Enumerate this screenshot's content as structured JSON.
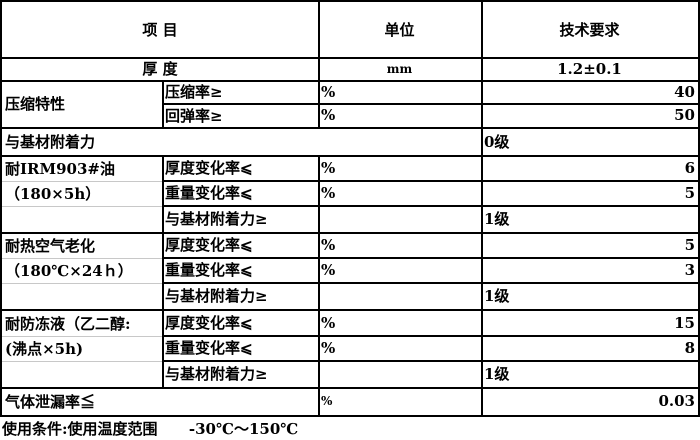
{
  "header": {
    "item": "项          目",
    "unit": "单位",
    "requirement": "技术要求"
  },
  "thickness": {
    "label": "厚            度",
    "unit": "mm",
    "value": "1.2±0.1"
  },
  "compression": {
    "label": "压缩特性",
    "rows": [
      {
        "name": "压缩率≥",
        "unit": "%",
        "value": "40"
      },
      {
        "name": "回弹率≥",
        "unit": "%",
        "value": "50"
      }
    ]
  },
  "adhesion": {
    "label": "与基材附着力",
    "value": "0级"
  },
  "oil": {
    "label1": "耐IRM903#油",
    "label2": "（180×5h）",
    "rows": [
      {
        "name": "厚度变化率⩽",
        "unit": "%",
        "value": "6"
      },
      {
        "name": "重量变化率⩽",
        "unit": "%",
        "value": "5"
      },
      {
        "name": "与基材附着力≥",
        "unit": "",
        "value": "1级"
      }
    ]
  },
  "heat": {
    "label1": "耐热空气老化",
    "label2": "（180℃×24ｈ）",
    "rows": [
      {
        "name": "厚度变化率⩽",
        "unit": "%",
        "value": "5"
      },
      {
        "name": "重量变化率⩽",
        "unit": "%",
        "value": "3"
      },
      {
        "name": "与基材附着力≥",
        "unit": "",
        "value": "1级"
      }
    ]
  },
  "antifreeze": {
    "label1": "耐防冻液（乙二醇:",
    "label2": "(沸点×5h)",
    "rows": [
      {
        "name": "厚度变化率⩽",
        "unit": "%",
        "value": "15"
      },
      {
        "name": "重量变化率⩽",
        "unit": "%",
        "value": "8"
      },
      {
        "name": "与基材附着力≥",
        "unit": "",
        "value": "1级"
      }
    ]
  },
  "gas": {
    "label": "气体泄漏率≦",
    "unit": "%",
    "value": "0.03"
  },
  "footer": "使用条件:使用温度范围      -30℃～150℃"
}
